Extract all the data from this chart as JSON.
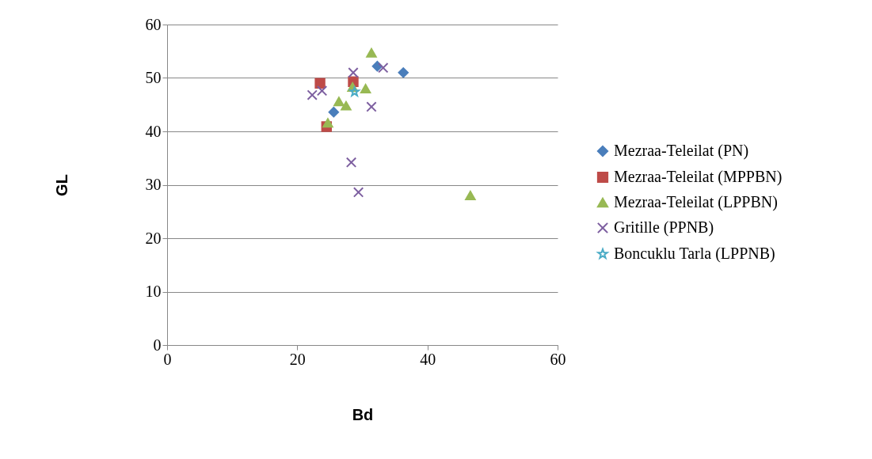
{
  "chart_data": {
    "type": "scatter",
    "xlabel": "Bd",
    "ylabel": "GL",
    "xlim": [
      0,
      60
    ],
    "ylim": [
      0,
      60
    ],
    "xticks": [
      0,
      20,
      40,
      60
    ],
    "yticks": [
      0,
      10,
      20,
      30,
      40,
      50,
      60
    ],
    "grid": "y",
    "legend": "right",
    "series": [
      {
        "name": "Mezraa-Teleilat (PN)",
        "color": "#4a7ebb",
        "marker": "diamond",
        "x": [
          32.3,
          36.3,
          25.6
        ],
        "values": [
          52.2,
          51.0,
          43.6
        ]
      },
      {
        "name": "Mezraa-Teleilat (MPPBN)",
        "color": "#be4b48",
        "marker": "square",
        "x": [
          23.5,
          28.6,
          24.5
        ],
        "values": [
          49.0,
          49.3,
          40.9
        ]
      },
      {
        "name": "Mezraa-Teleilat (LPPBN)",
        "color": "#98b954",
        "marker": "triangle",
        "x": [
          31.4,
          30.5,
          28.5,
          26.4,
          27.5,
          24.7,
          46.6
        ],
        "values": [
          54.7,
          48.0,
          48.3,
          45.6,
          44.8,
          41.6,
          28.0
        ]
      },
      {
        "name": "Gritille (PPNB)",
        "color": "#7d5fa0",
        "marker": "cross",
        "x": [
          22.3,
          23.8,
          28.6,
          33.2,
          31.4,
          28.3,
          29.4
        ],
        "values": [
          46.8,
          47.6,
          51.0,
          51.9,
          44.6,
          34.2,
          28.6
        ]
      },
      {
        "name": "Boncuklu Tarla (LPPNB)",
        "color": "#4bacc6",
        "marker": "star",
        "x": [
          28.8
        ],
        "values": [
          47.4
        ]
      }
    ]
  }
}
